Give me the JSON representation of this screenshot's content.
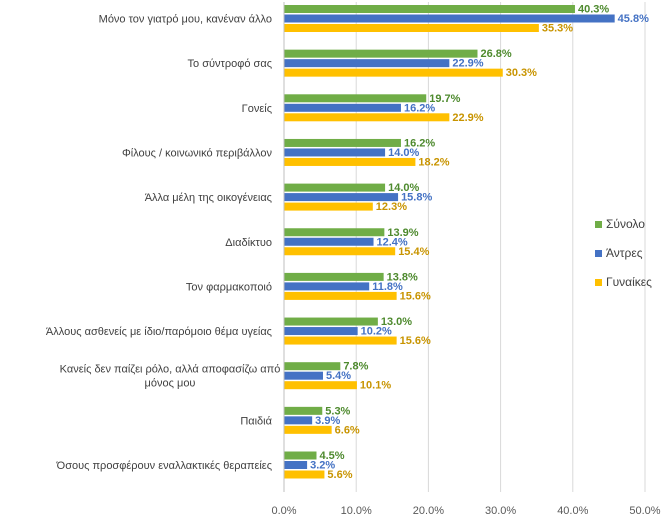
{
  "chart_data": {
    "type": "bar",
    "orientation": "horizontal",
    "categories": [
      "Μόνο τον γιατρό μου, κανέναν άλλο",
      "Το σύντροφό σας",
      "Γονείς",
      "Φίλους / κοινωνικό περιβάλλον",
      "Άλλα μέλη της οικογένειας",
      "Διαδίκτυο",
      "Τον φαρμακοποιό",
      "Άλλους ασθενείς με ίδιο/παρόμοιο θέμα υγείας",
      "Κανείς δεν παίζει ρόλο, αλλά αποφασίζω από μόνος μου",
      "Παιδιά",
      "Όσους προσφέρουν εναλλακτικές θεραπείες"
    ],
    "category_lines": [
      [
        "Μόνο τον γιατρό μου, κανέναν άλλο"
      ],
      [
        "Το σύντροφό σας"
      ],
      [
        "Γονείς"
      ],
      [
        "Φίλους / κοινωνικό περιβάλλον"
      ],
      [
        "Άλλα μέλη της οικογένειας"
      ],
      [
        "Διαδίκτυο"
      ],
      [
        "Τον φαρμακοποιό"
      ],
      [
        "Άλλους ασθενείς με ίδιο/παρόμοιο θέμα υγείας"
      ],
      [
        "Κανείς δεν παίζει ρόλο, αλλά αποφασίζω από",
        "μόνος μου"
      ],
      [
        "Παιδιά"
      ],
      [
        "Όσους προσφέρουν εναλλακτικές θεραπείες"
      ]
    ],
    "series": [
      {
        "name": "Σύνολο",
        "color": "#70ad47",
        "label_color": "#4e8a2e",
        "values": [
          40.3,
          26.8,
          19.7,
          16.2,
          14.0,
          13.9,
          13.8,
          13.0,
          7.8,
          5.3,
          4.5
        ]
      },
      {
        "name": "Άντρες",
        "color": "#4472c4",
        "label_color": "#4472c4",
        "values": [
          45.8,
          22.9,
          16.2,
          14.0,
          15.8,
          12.4,
          11.8,
          10.2,
          5.4,
          3.9,
          3.2
        ]
      },
      {
        "name": "Γυναίκες",
        "color": "#ffc000",
        "label_color": "#c89400",
        "values": [
          35.3,
          30.3,
          22.9,
          18.2,
          12.3,
          15.4,
          15.6,
          15.6,
          10.1,
          6.6,
          5.6
        ]
      }
    ],
    "data_labels": [
      [
        "40.3%",
        "26.8%",
        "19.7%",
        "16.2%",
        "14.0%",
        "13.9%",
        "13.8%",
        "13.0%",
        "7.8%",
        "5.3%",
        "4.5%"
      ],
      [
        "45.8%",
        "22.9%",
        "16.2%",
        "14.0%",
        "15.8%",
        "12.4%",
        "11.8%",
        "10.2%",
        "5.4%",
        "3.9%",
        "3.2%"
      ],
      [
        "35.3%",
        "30.3%",
        "22.9%",
        "18.2%",
        "12.3%",
        "15.4%",
        "15.6%",
        "15.6%",
        "10.1%",
        "6.6%",
        "5.6%"
      ]
    ],
    "x_ticks": [
      0,
      10,
      20,
      30,
      40,
      50
    ],
    "x_tick_labels": [
      "0.0%",
      "10.0%",
      "20.0%",
      "30.0%",
      "40.0%",
      "50.0%"
    ],
    "xlim": [
      0,
      50
    ],
    "grid": true,
    "legend_position": "right"
  }
}
